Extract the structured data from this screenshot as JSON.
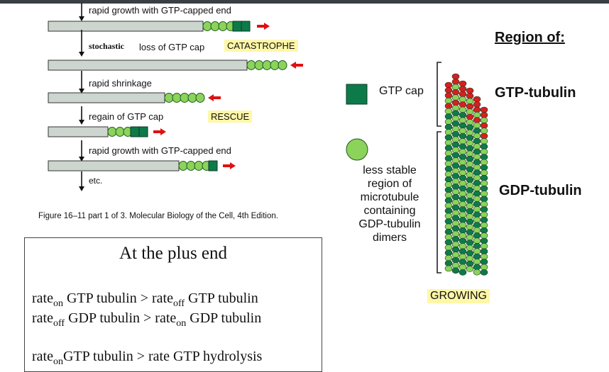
{
  "steps": [
    {
      "label": "rapid growth with GTP-capped end"
    },
    {
      "label_a": "stochastic",
      "label_b": "loss of GTP cap",
      "tag": "CATASTROPHE"
    },
    {
      "label": "rapid shrinkage"
    },
    {
      "label": "regain of GTP cap",
      "tag": "RESCUE"
    },
    {
      "label": "rapid growth with GTP-capped end"
    },
    {
      "label": "etc."
    }
  ],
  "figure_caption": "Figure 16–11 part 1 of 3. Molecular Biology of the Cell, 4th Edition.",
  "box": {
    "title": "At the plus end",
    "line1": {
      "a": "rate",
      "a_sub": "on",
      "b": " GTP tubulin  > rate",
      "b_sub": "off",
      "c": " GTP tubulin"
    },
    "line2": {
      "a": "rate",
      "a_sub": "off",
      "b": " GDP tubulin > rate",
      "b_sub": "on",
      "c": " GDP tubulin"
    },
    "line3": {
      "a": "rate",
      "a_sub": "on",
      "b": "GTP tubulin > rate GTP hydrolysis"
    }
  },
  "legend": {
    "gtp_cap": "GTP cap",
    "less_stable": [
      "less stable",
      "region of",
      "microtubule",
      "containing",
      "GDP-tubulin",
      "dimers"
    ]
  },
  "region": {
    "title": "Region of:",
    "gtp": "GTP-tubulin",
    "gdp": "GDP-tubulin"
  },
  "growing": "GROWING",
  "colors": {
    "gdp_tubulin": "#8bd35a",
    "gtp_cap": "#0d7a4a",
    "arrow": "#e01010",
    "rod": "#cdd5cf",
    "highlight": "#fff7a8",
    "gtp_tubulin_dot": "#d42020"
  }
}
